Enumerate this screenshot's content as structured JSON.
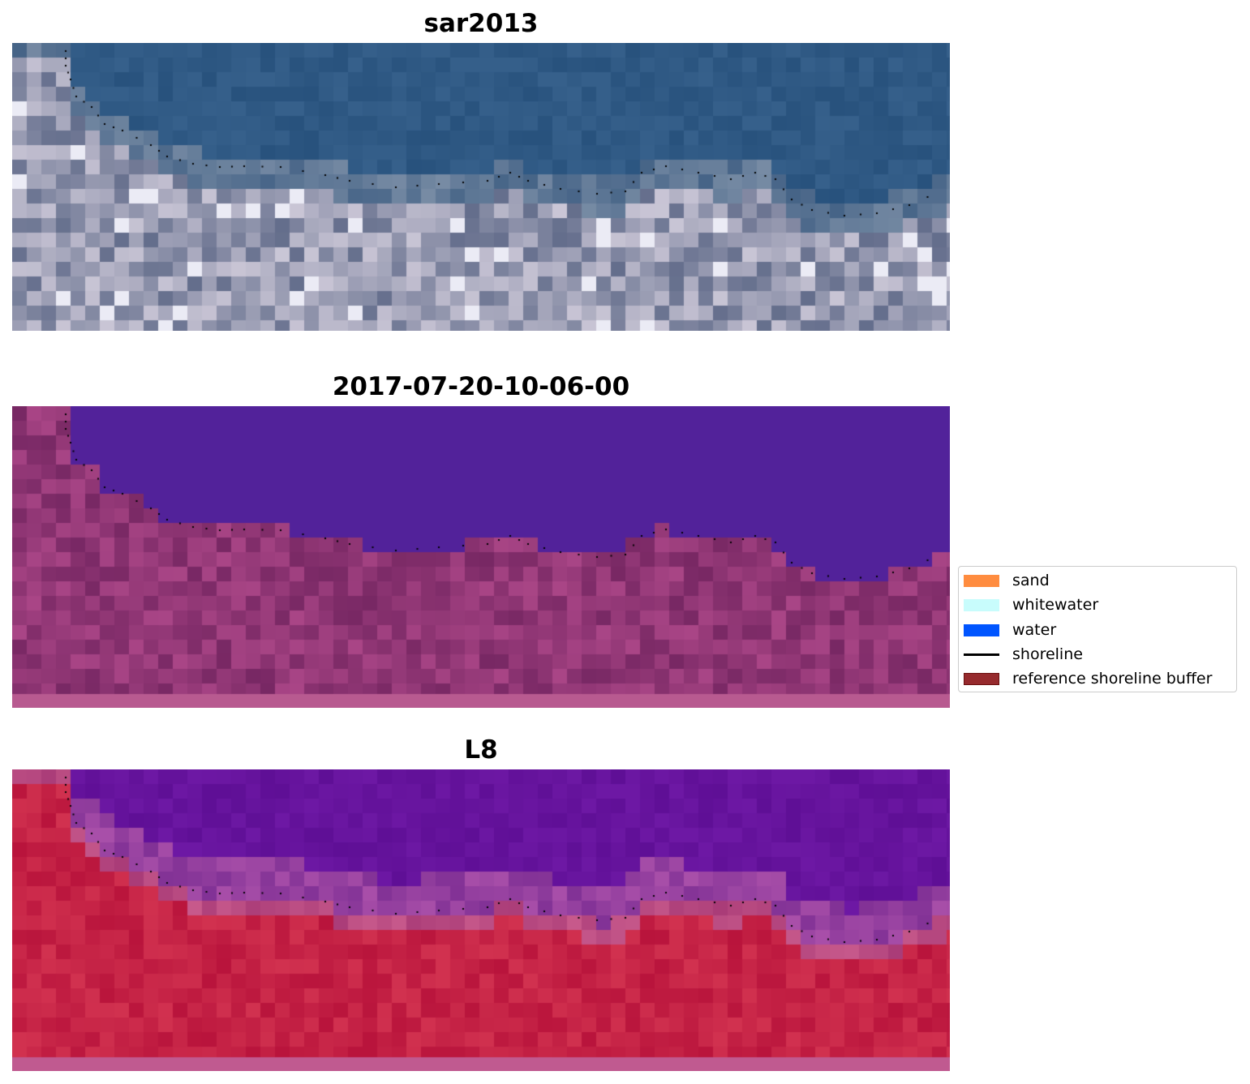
{
  "panels": [
    {
      "title": "sar2013"
    },
    {
      "title": "2017-07-20-10-06-00"
    },
    {
      "title": "L8"
    }
  ],
  "legend": {
    "placement": "center-right",
    "items": [
      {
        "label": "sand",
        "color": "#ff8c3f",
        "kind": "patch"
      },
      {
        "label": "whitewater",
        "color": "#c8fcfc",
        "kind": "patch"
      },
      {
        "label": "water",
        "color": "#0055ff",
        "kind": "patch"
      },
      {
        "label": "shoreline",
        "color": "#000000",
        "kind": "line"
      },
      {
        "label": "reference shoreline buffer",
        "color": "#962a2d",
        "kind": "patch"
      }
    ]
  }
}
